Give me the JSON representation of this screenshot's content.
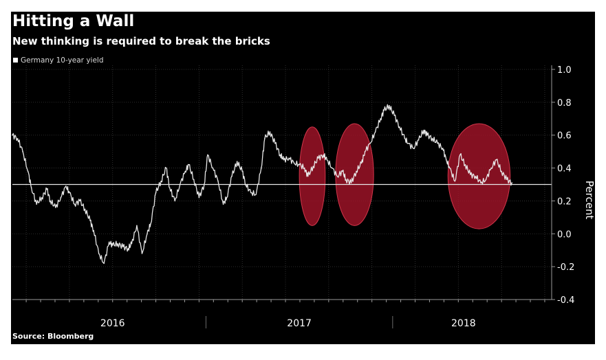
{
  "chart_data": {
    "type": "line",
    "title": "Hitting a Wall",
    "subtitle": "New thinking is required to break the bricks",
    "source": "Source: Bloomberg",
    "ylabel": "Percent",
    "xlabel": "",
    "ylim": [
      -0.4,
      1.0
    ],
    "yticks": [
      {
        "value": 1.0,
        "label": "1.0"
      },
      {
        "value": 0.8,
        "label": "0.8"
      },
      {
        "value": 0.6,
        "label": "0.6"
      },
      {
        "value": 0.4,
        "label": "0.4"
      },
      {
        "value": 0.2,
        "label": "0.2"
      },
      {
        "value": 0.0,
        "label": "0.0"
      },
      {
        "value": -0.2,
        "label": "-0.2"
      },
      {
        "value": -0.4,
        "label": "-0.4"
      }
    ],
    "xlim": [
      2015.42,
      2018.54
    ],
    "year_labels": [
      {
        "year": 2016,
        "label": "2016",
        "center": 2016.0
      },
      {
        "year": 2017,
        "label": "2017",
        "center": 2017.08
      },
      {
        "year": 2018,
        "label": "2018",
        "center": 2018.03
      }
    ],
    "year_dividers": [
      2016.54,
      2017.62
    ],
    "reference_line": {
      "value": 0.3,
      "color": "#e8e8e8"
    },
    "legend": [
      "Germany 10-year yield"
    ],
    "highlight_color": "#a11428",
    "highlights": [
      {
        "start": 2017.08,
        "end": 2017.23,
        "low": 0.05,
        "high": 0.65
      },
      {
        "start": 2017.29,
        "end": 2017.51,
        "low": 0.05,
        "high": 0.67
      },
      {
        "start": 2017.94,
        "end": 2018.3,
        "low": 0.03,
        "high": 0.67
      }
    ],
    "series": [
      {
        "name": "Germany 10-year yield",
        "color": "#e8e8e8",
        "x": [
          2015.42,
          2015.45,
          2015.48,
          2015.51,
          2015.53,
          2015.56,
          2015.59,
          2015.62,
          2015.64,
          2015.67,
          2015.7,
          2015.73,
          2015.75,
          2015.78,
          2015.81,
          2015.84,
          2015.87,
          2015.89,
          2015.92,
          2015.95,
          2015.98,
          2016.0,
          2016.03,
          2016.06,
          2016.09,
          2016.11,
          2016.14,
          2016.17,
          2016.2,
          2016.22,
          2016.25,
          2016.28,
          2016.31,
          2016.33,
          2016.36,
          2016.39,
          2016.42,
          2016.44,
          2016.47,
          2016.5,
          2016.53,
          2016.55,
          2016.58,
          2016.61,
          2016.64,
          2016.66,
          2016.69,
          2016.72,
          2016.75,
          2016.77,
          2016.8,
          2016.83,
          2016.86,
          2016.88,
          2016.91,
          2016.94,
          2016.97,
          2016.99,
          2017.02,
          2017.05,
          2017.08,
          2017.11,
          2017.13,
          2017.16,
          2017.19,
          2017.22,
          2017.24,
          2017.27,
          2017.3,
          2017.33,
          2017.35,
          2017.38,
          2017.41,
          2017.44,
          2017.46,
          2017.49,
          2017.52,
          2017.55,
          2017.57,
          2017.6,
          2017.63,
          2017.66,
          2017.69,
          2017.71,
          2017.74,
          2017.77,
          2017.8,
          2017.82,
          2017.85,
          2017.88,
          2017.91,
          2017.93,
          2017.95,
          2017.98,
          2018.01,
          2018.04,
          2018.07,
          2018.1,
          2018.13,
          2018.16,
          2018.19,
          2018.22,
          2018.25,
          2018.28,
          2018.31
        ],
        "y": [
          0.6,
          0.58,
          0.5,
          0.38,
          0.28,
          0.18,
          0.22,
          0.27,
          0.2,
          0.16,
          0.22,
          0.29,
          0.25,
          0.18,
          0.2,
          0.15,
          0.08,
          0.02,
          -0.12,
          -0.18,
          -0.05,
          -0.07,
          -0.06,
          -0.08,
          -0.09,
          -0.06,
          0.05,
          -0.12,
          0.0,
          0.06,
          0.25,
          0.32,
          0.4,
          0.28,
          0.2,
          0.3,
          0.38,
          0.42,
          0.33,
          0.22,
          0.3,
          0.48,
          0.4,
          0.32,
          0.18,
          0.22,
          0.35,
          0.44,
          0.38,
          0.3,
          0.25,
          0.24,
          0.4,
          0.58,
          0.62,
          0.55,
          0.48,
          0.45,
          0.46,
          0.43,
          0.42,
          0.4,
          0.35,
          0.41,
          0.46,
          0.48,
          0.45,
          0.4,
          0.35,
          0.38,
          0.33,
          0.31,
          0.38,
          0.43,
          0.5,
          0.55,
          0.62,
          0.7,
          0.75,
          0.78,
          0.72,
          0.65,
          0.58,
          0.55,
          0.52,
          0.57,
          0.63,
          0.6,
          0.58,
          0.55,
          0.52,
          0.45,
          0.4,
          0.32,
          0.48,
          0.42,
          0.36,
          0.35,
          0.31,
          0.33,
          0.4,
          0.45,
          0.38,
          0.33,
          0.31
        ]
      }
    ]
  }
}
